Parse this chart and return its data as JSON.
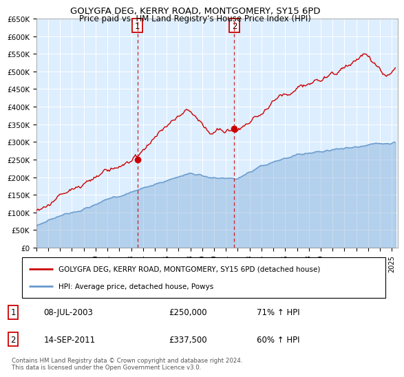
{
  "title": "GOLYGFA DEG, KERRY ROAD, MONTGOMERY, SY15 6PD",
  "subtitle": "Price paid vs. HM Land Registry's House Price Index (HPI)",
  "ylabel_ticks": [
    "£0",
    "£50K",
    "£100K",
    "£150K",
    "£200K",
    "£250K",
    "£300K",
    "£350K",
    "£400K",
    "£450K",
    "£500K",
    "£550K",
    "£600K",
    "£650K"
  ],
  "ytick_values": [
    0,
    50000,
    100000,
    150000,
    200000,
    250000,
    300000,
    350000,
    400000,
    450000,
    500000,
    550000,
    600000,
    650000
  ],
  "ylim": [
    0,
    650000
  ],
  "xlim_start": 1995.0,
  "xlim_end": 2025.5,
  "legend_line1": "GOLYGFA DEG, KERRY ROAD, MONTGOMERY, SY15 6PD (detached house)",
  "legend_line2": "HPI: Average price, detached house, Powys",
  "transaction1_date": "08-JUL-2003",
  "transaction1_price": "£250,000",
  "transaction1_hpi": "71% ↑ HPI",
  "transaction2_date": "14-SEP-2011",
  "transaction2_price": "£337,500",
  "transaction2_hpi": "60% ↑ HPI",
  "footer": "Contains HM Land Registry data © Crown copyright and database right 2024.\nThis data is licensed under the Open Government Licence v3.0.",
  "property_color": "#cc0000",
  "hpi_color": "#6699cc",
  "hpi_fill_color": "#cce0f5",
  "vline_color": "#cc0000",
  "transaction1_x": 2003.52,
  "transaction1_y": 250000,
  "transaction2_x": 2011.71,
  "transaction2_y": 337500,
  "plot_bg": "#ddeeff",
  "grid_color": "#ffffff",
  "xtick_years": [
    1995,
    1996,
    1997,
    1998,
    1999,
    2000,
    2001,
    2002,
    2003,
    2004,
    2005,
    2006,
    2007,
    2008,
    2009,
    2010,
    2011,
    2012,
    2013,
    2014,
    2015,
    2016,
    2017,
    2018,
    2019,
    2020,
    2021,
    2022,
    2023,
    2024,
    2025
  ]
}
